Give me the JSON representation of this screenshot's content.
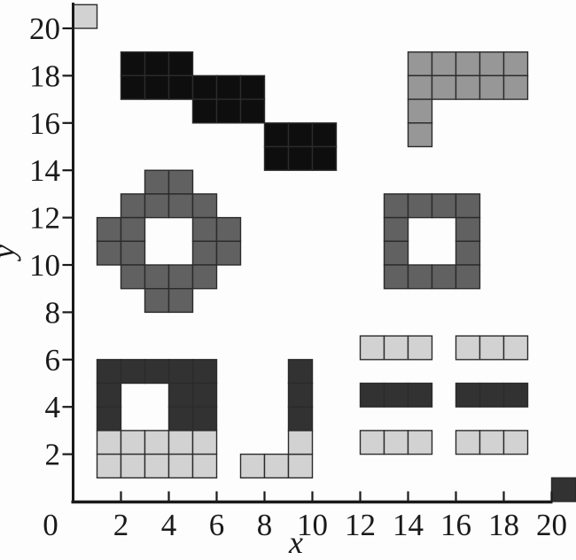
{
  "chart_data": {
    "type": "heatmap",
    "title": "",
    "xlabel": "x",
    "ylabel": "y",
    "xlim": [
      0,
      21
    ],
    "ylim": [
      0,
      21
    ],
    "xticks": [
      0,
      2,
      4,
      6,
      8,
      10,
      12,
      14,
      16,
      18,
      20
    ],
    "yticks": [
      2,
      4,
      6,
      8,
      10,
      12,
      14,
      16,
      18,
      20
    ],
    "grid": false,
    "legend": null,
    "cell_unit": 1,
    "background": "#fdfdfd",
    "colors": {
      "black": "#0e0e0e",
      "dark": "#323232",
      "medium": "#616161",
      "gray": "#979797",
      "light": "#d2d2d2",
      "cell_border": "#2b2b2b",
      "axis": "#1a1a1a"
    },
    "shapes": [
      {
        "name": "single-light-cell-top-left",
        "color_key": "light",
        "cells": [
          [
            0,
            20
          ]
        ]
      },
      {
        "name": "black-staircase",
        "color_key": "black",
        "cells": [
          [
            2,
            18
          ],
          [
            3,
            18
          ],
          [
            4,
            18
          ],
          [
            2,
            17
          ],
          [
            3,
            17
          ],
          [
            4,
            17
          ],
          [
            5,
            17
          ],
          [
            6,
            17
          ],
          [
            7,
            17
          ],
          [
            5,
            16
          ],
          [
            6,
            16
          ],
          [
            7,
            16
          ],
          [
            8,
            15
          ],
          [
            9,
            15
          ],
          [
            10,
            15
          ],
          [
            8,
            14
          ],
          [
            9,
            14
          ],
          [
            10,
            14
          ]
        ]
      },
      {
        "name": "gray-l-shape-top-right",
        "color_key": "gray",
        "cells": [
          [
            14,
            18
          ],
          [
            15,
            18
          ],
          [
            16,
            18
          ],
          [
            17,
            18
          ],
          [
            18,
            18
          ],
          [
            14,
            17
          ],
          [
            15,
            17
          ],
          [
            16,
            17
          ],
          [
            17,
            17
          ],
          [
            18,
            17
          ],
          [
            14,
            16
          ],
          [
            14,
            15
          ]
        ]
      },
      {
        "name": "diamond-ring",
        "color_key": "medium",
        "cells": [
          [
            3,
            13
          ],
          [
            4,
            13
          ],
          [
            2,
            12
          ],
          [
            3,
            12
          ],
          [
            4,
            12
          ],
          [
            5,
            12
          ],
          [
            1,
            11
          ],
          [
            2,
            11
          ],
          [
            5,
            11
          ],
          [
            6,
            11
          ],
          [
            1,
            10
          ],
          [
            2,
            10
          ],
          [
            5,
            10
          ],
          [
            6,
            10
          ],
          [
            2,
            9
          ],
          [
            3,
            9
          ],
          [
            4,
            9
          ],
          [
            5,
            9
          ],
          [
            3,
            8
          ],
          [
            4,
            8
          ]
        ]
      },
      {
        "name": "square-ring",
        "color_key": "medium",
        "cells": [
          [
            13,
            12
          ],
          [
            14,
            12
          ],
          [
            15,
            12
          ],
          [
            16,
            12
          ],
          [
            13,
            11
          ],
          [
            16,
            11
          ],
          [
            13,
            10
          ],
          [
            16,
            10
          ],
          [
            13,
            9
          ],
          [
            14,
            9
          ],
          [
            15,
            9
          ],
          [
            16,
            9
          ]
        ]
      },
      {
        "name": "dark-ring-bottom-left",
        "color_key": "dark",
        "cells": [
          [
            1,
            5
          ],
          [
            2,
            5
          ],
          [
            3,
            5
          ],
          [
            4,
            5
          ],
          [
            5,
            5
          ],
          [
            1,
            4
          ],
          [
            4,
            4
          ],
          [
            5,
            4
          ],
          [
            1,
            3
          ],
          [
            4,
            3
          ],
          [
            5,
            3
          ]
        ]
      },
      {
        "name": "light-base-bottom-left",
        "color_key": "light",
        "cells": [
          [
            1,
            2
          ],
          [
            2,
            2
          ],
          [
            3,
            2
          ],
          [
            4,
            2
          ],
          [
            5,
            2
          ],
          [
            1,
            1
          ],
          [
            2,
            1
          ],
          [
            3,
            1
          ],
          [
            4,
            1
          ],
          [
            5,
            1
          ]
        ]
      },
      {
        "name": "j-shape-light-part",
        "color_key": "light",
        "cells": [
          [
            7,
            1
          ],
          [
            8,
            1
          ],
          [
            9,
            1
          ],
          [
            9,
            2
          ]
        ]
      },
      {
        "name": "j-shape-dark-part",
        "color_key": "dark",
        "cells": [
          [
            9,
            3
          ],
          [
            9,
            4
          ],
          [
            9,
            5
          ]
        ]
      },
      {
        "name": "light-bars-row-top",
        "color_key": "light",
        "cells": [
          [
            12,
            6
          ],
          [
            13,
            6
          ],
          [
            14,
            6
          ],
          [
            16,
            6
          ],
          [
            17,
            6
          ],
          [
            18,
            6
          ]
        ]
      },
      {
        "name": "dark-bars-row-middle",
        "color_key": "dark",
        "cells": [
          [
            12,
            4
          ],
          [
            13,
            4
          ],
          [
            14,
            4
          ],
          [
            16,
            4
          ],
          [
            17,
            4
          ],
          [
            18,
            4
          ]
        ]
      },
      {
        "name": "light-bars-row-bottom",
        "color_key": "light",
        "cells": [
          [
            12,
            2
          ],
          [
            13,
            2
          ],
          [
            14,
            2
          ],
          [
            16,
            2
          ],
          [
            17,
            2
          ],
          [
            18,
            2
          ]
        ]
      },
      {
        "name": "single-dark-cell-bottom-right",
        "color_key": "dark",
        "cells": [
          [
            20,
            0
          ]
        ]
      }
    ]
  }
}
